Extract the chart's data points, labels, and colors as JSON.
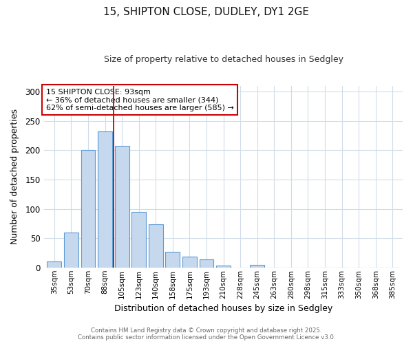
{
  "title1": "15, SHIPTON CLOSE, DUDLEY, DY1 2GE",
  "title2": "Size of property relative to detached houses in Sedgley",
  "xlabel": "Distribution of detached houses by size in Sedgley",
  "ylabel": "Number of detached properties",
  "categories": [
    "35sqm",
    "53sqm",
    "70sqm",
    "88sqm",
    "105sqm",
    "123sqm",
    "140sqm",
    "158sqm",
    "175sqm",
    "193sqm",
    "210sqm",
    "228sqm",
    "245sqm",
    "263sqm",
    "280sqm",
    "298sqm",
    "315sqm",
    "333sqm",
    "350sqm",
    "368sqm",
    "385sqm"
  ],
  "values": [
    10,
    60,
    200,
    232,
    208,
    95,
    74,
    27,
    19,
    14,
    3,
    0,
    4,
    0,
    0,
    0,
    0,
    0,
    0,
    0,
    0
  ],
  "bar_color": "#c5d8ed",
  "bar_edge_color": "#5b9bd5",
  "red_line_x": 3.5,
  "annotation_line1": "15 SHIPTON CLOSE: 93sqm",
  "annotation_line2": "← 36% of detached houses are smaller (344)",
  "annotation_line3": "62% of semi-detached houses are larger (585) →",
  "ylim": [
    0,
    310
  ],
  "yticks": [
    0,
    50,
    100,
    150,
    200,
    250,
    300
  ],
  "footer1": "Contains HM Land Registry data © Crown copyright and database right 2025.",
  "footer2": "Contains public sector information licensed under the Open Government Licence v3.0.",
  "bg_color": "#ffffff",
  "grid_color": "#d0dce8",
  "title1_fontsize": 11,
  "title2_fontsize": 9
}
